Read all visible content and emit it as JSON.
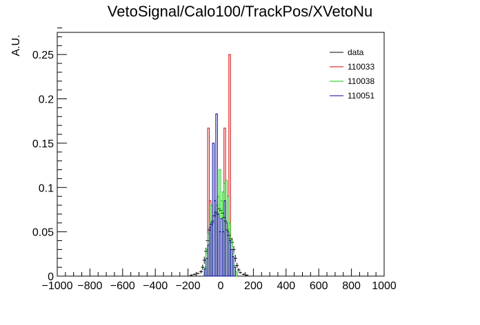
{
  "chart_data": {
    "type": "histogram",
    "title": "VetoSignal/Calo100/TrackPos/XVetoNu",
    "xlabel": "",
    "ylabel": "A.U.",
    "xlim": [
      -1000,
      1000
    ],
    "ylim": [
      0,
      0.275
    ],
    "x_ticks": [
      -1000,
      -800,
      -600,
      -400,
      -200,
      0,
      200,
      400,
      600,
      800,
      1000
    ],
    "x_tick_labels": [
      "−1000",
      "−800",
      "−600",
      "−400",
      "−200",
      "0",
      "200",
      "400",
      "600",
      "800",
      "1000"
    ],
    "y_ticks": [
      0,
      0.05,
      0.1,
      0.15,
      0.2,
      0.25
    ],
    "y_tick_labels": [
      "0",
      "0.05",
      "0.1",
      "0.15",
      "0.2",
      "0.25"
    ],
    "legend_position": "top-right",
    "series": [
      {
        "name": "data",
        "color": "#000000",
        "style": "points",
        "points": [
          {
            "x": -180,
            "y": 0.001,
            "err": 0.001
          },
          {
            "x": -160,
            "y": 0.002,
            "err": 0.001
          },
          {
            "x": -140,
            "y": 0.003,
            "err": 0.001
          },
          {
            "x": -120,
            "y": 0.005,
            "err": 0.002
          },
          {
            "x": -110,
            "y": 0.01,
            "err": 0.003
          },
          {
            "x": -100,
            "y": 0.018,
            "err": 0.004
          },
          {
            "x": -90,
            "y": 0.028,
            "err": 0.004
          },
          {
            "x": -80,
            "y": 0.04,
            "err": 0.005
          },
          {
            "x": -70,
            "y": 0.052,
            "err": 0.005
          },
          {
            "x": -60,
            "y": 0.058,
            "err": 0.005
          },
          {
            "x": -50,
            "y": 0.062,
            "err": 0.006
          },
          {
            "x": -40,
            "y": 0.068,
            "err": 0.006
          },
          {
            "x": -30,
            "y": 0.072,
            "err": 0.006
          },
          {
            "x": -20,
            "y": 0.07,
            "err": 0.006
          },
          {
            "x": -10,
            "y": 0.076,
            "err": 0.006
          },
          {
            "x": 0,
            "y": 0.074,
            "err": 0.006
          },
          {
            "x": 10,
            "y": 0.071,
            "err": 0.006
          },
          {
            "x": 20,
            "y": 0.066,
            "err": 0.006
          },
          {
            "x": 30,
            "y": 0.062,
            "err": 0.006
          },
          {
            "x": 40,
            "y": 0.052,
            "err": 0.005
          },
          {
            "x": 50,
            "y": 0.046,
            "err": 0.005
          },
          {
            "x": 60,
            "y": 0.042,
            "err": 0.005
          },
          {
            "x": 70,
            "y": 0.038,
            "err": 0.005
          },
          {
            "x": 80,
            "y": 0.03,
            "err": 0.004
          },
          {
            "x": 90,
            "y": 0.02,
            "err": 0.004
          },
          {
            "x": 100,
            "y": 0.012,
            "err": 0.003
          },
          {
            "x": 110,
            "y": 0.007,
            "err": 0.002
          },
          {
            "x": 120,
            "y": 0.004,
            "err": 0.001
          },
          {
            "x": 140,
            "y": 0.002,
            "err": 0.001
          },
          {
            "x": 160,
            "y": 0.001,
            "err": 0.001
          }
        ]
      },
      {
        "name": "110033",
        "color": "#cc0000",
        "style": "step",
        "bins": [
          {
            "x0": -80,
            "x1": -70,
            "y": 0.167
          },
          {
            "x0": -70,
            "x1": -60,
            "y": 0.085
          },
          {
            "x0": -60,
            "x1": -30,
            "y": 0.0
          },
          {
            "x0": -30,
            "x1": -20,
            "y": 0.07
          },
          {
            "x0": -20,
            "x1": 20,
            "y": 0.0
          },
          {
            "x0": 20,
            "x1": 30,
            "y": 0.167
          },
          {
            "x0": 30,
            "x1": 50,
            "y": 0.0
          },
          {
            "x0": 50,
            "x1": 60,
            "y": 0.25
          }
        ]
      },
      {
        "name": "110038",
        "color": "#00cc00",
        "style": "step",
        "bins": [
          {
            "x0": -100,
            "x1": -90,
            "y": 0.01
          },
          {
            "x0": -90,
            "x1": -80,
            "y": 0.03
          },
          {
            "x0": -80,
            "x1": -70,
            "y": 0.048
          },
          {
            "x0": -70,
            "x1": -60,
            "y": 0.06
          },
          {
            "x0": -60,
            "x1": -50,
            "y": 0.08
          },
          {
            "x0": -50,
            "x1": -40,
            "y": 0.06
          },
          {
            "x0": -40,
            "x1": -30,
            "y": 0.07
          },
          {
            "x0": -30,
            "x1": -20,
            "y": 0.08
          },
          {
            "x0": -20,
            "x1": -10,
            "y": 0.09
          },
          {
            "x0": -10,
            "x1": 0,
            "y": 0.12
          },
          {
            "x0": 0,
            "x1": 10,
            "y": 0.085
          },
          {
            "x0": 10,
            "x1": 20,
            "y": 0.095
          },
          {
            "x0": 20,
            "x1": 30,
            "y": 0.105
          },
          {
            "x0": 30,
            "x1": 40,
            "y": 0.108
          },
          {
            "x0": 40,
            "x1": 50,
            "y": 0.09
          },
          {
            "x0": 50,
            "x1": 60,
            "y": 0.06
          },
          {
            "x0": 60,
            "x1": 70,
            "y": 0.04
          },
          {
            "x0": 70,
            "x1": 80,
            "y": 0.025
          },
          {
            "x0": 80,
            "x1": 90,
            "y": 0.012
          },
          {
            "x0": 90,
            "x1": 100,
            "y": 0.005
          }
        ]
      },
      {
        "name": "110051",
        "color": "#000099",
        "style": "step",
        "bins": [
          {
            "x0": -100,
            "x1": -90,
            "y": 0.008
          },
          {
            "x0": -90,
            "x1": -80,
            "y": 0.02
          },
          {
            "x0": -80,
            "x1": -70,
            "y": 0.035
          },
          {
            "x0": -70,
            "x1": -60,
            "y": 0.055
          },
          {
            "x0": -60,
            "x1": -50,
            "y": 0.06
          },
          {
            "x0": -50,
            "x1": -40,
            "y": 0.15
          },
          {
            "x0": -40,
            "x1": -30,
            "y": 0.085
          },
          {
            "x0": -30,
            "x1": -20,
            "y": 0.183
          },
          {
            "x0": -20,
            "x1": -10,
            "y": 0.07
          },
          {
            "x0": -10,
            "x1": 0,
            "y": 0.05
          },
          {
            "x0": 0,
            "x1": 10,
            "y": 0.065
          },
          {
            "x0": 10,
            "x1": 20,
            "y": 0.05
          },
          {
            "x0": 20,
            "x1": 30,
            "y": 0.085
          },
          {
            "x0": 30,
            "x1": 40,
            "y": 0.06
          },
          {
            "x0": 40,
            "x1": 50,
            "y": 0.05
          },
          {
            "x0": 50,
            "x1": 60,
            "y": 0.04
          },
          {
            "x0": 60,
            "x1": 70,
            "y": 0.03
          },
          {
            "x0": 70,
            "x1": 80,
            "y": 0.022
          },
          {
            "x0": 80,
            "x1": 90,
            "y": 0.01
          }
        ]
      }
    ]
  }
}
